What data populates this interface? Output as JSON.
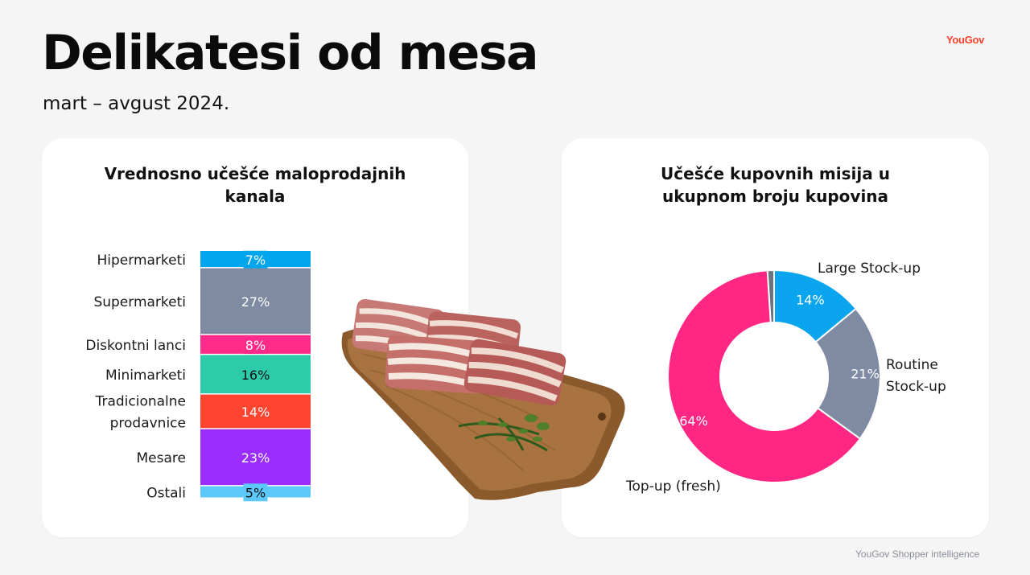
{
  "header": {
    "title": "Delikatesi od mesa",
    "subtitle": "mart – avgust 2024.",
    "logo_text": "YouGov"
  },
  "footer": {
    "text": "YouGov Shopper intelligence"
  },
  "chart_data": [
    {
      "type": "bar",
      "stacked": true,
      "orientation": "vertical",
      "title": "Vrednosno učešće maloprodajnih kanala",
      "unit": "%",
      "categories": [
        "Hipermarketi",
        "Supermarketi",
        "Diskontni lanci",
        "Minimarketi",
        "Tradicionalne prodavnice",
        "Mesare",
        "Ostali"
      ],
      "category_lines": [
        [
          "Hipermarketi"
        ],
        [
          "Supermarketi"
        ],
        [
          "Diskontni lanci"
        ],
        [
          "Minimarketi"
        ],
        [
          "Tradicionalne",
          "prodavnice"
        ],
        [
          "Mesare"
        ],
        [
          "Ostali"
        ]
      ],
      "values": [
        7,
        27,
        8,
        16,
        14,
        23,
        5
      ],
      "labels": [
        "7%",
        "27%",
        "8%",
        "16%",
        "14%",
        "23%",
        "5%"
      ],
      "colors": [
        "#00a6ed",
        "#7f8ba3",
        "#ff2a8a",
        "#2dcbaa",
        "#ff4530",
        "#9b2cff",
        "#5cc8fb"
      ],
      "label_colors": [
        "#ffffff",
        "#ffffff",
        "#ffffff",
        "#111111",
        "#ffffff",
        "#ffffff",
        "#111111"
      ]
    },
    {
      "type": "pie",
      "donut": true,
      "title": "Učešće kupovnih misija u ukupnom broju kupovina",
      "unit": "%",
      "slices": [
        {
          "name": "Large Stock-up",
          "value": 14,
          "label": "14%",
          "color": "#0aa5ee",
          "name_lines": [
            "Large Stock-up"
          ]
        },
        {
          "name": "Routine Stock-up",
          "value": 21,
          "label": "21%",
          "color": "#7f8ba3",
          "name_lines": [
            "Routine",
            "Stock-up"
          ]
        },
        {
          "name": "Top-up (fresh)",
          "value": 64,
          "label": "64%",
          "color": "#ff2783",
          "name_lines": [
            "Top-up (fresh)"
          ]
        },
        {
          "name": "",
          "value": 1,
          "label": "",
          "color": "#6b7280",
          "name_lines": []
        }
      ]
    }
  ]
}
